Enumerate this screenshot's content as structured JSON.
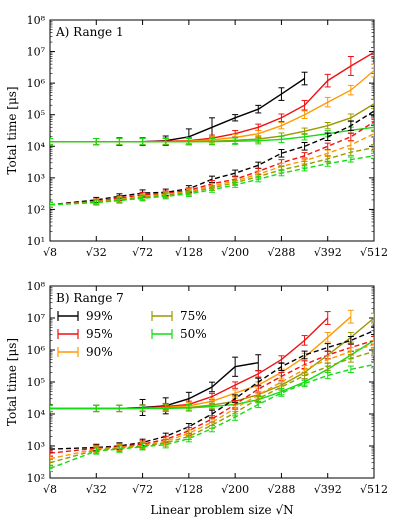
{
  "figure": {
    "xlabel": "Linear problem size √N",
    "x_tick_labels": [
      "√8",
      "√32",
      "√72",
      "√128",
      "√200",
      "√288",
      "√392",
      "√512"
    ]
  },
  "colors": {
    "99%": "#000000",
    "95%": "#ee1111",
    "90%": "#ff9900",
    "75%": "#999900",
    "50%": "#11dd11"
  },
  "chart_data": [
    {
      "type": "line",
      "title": "A) Range 1",
      "ylabel": "Total time [μs]",
      "xscale": "sqrt",
      "yscale": "log",
      "x_ticks": [
        8,
        32,
        72,
        128,
        200,
        288,
        392,
        512
      ],
      "xlim": [
        8,
        512
      ],
      "ylim": [
        10,
        100000000
      ],
      "y_tick_labels": [
        "10¹",
        "10²",
        "10³",
        "10⁴",
        "10⁵",
        "10⁶",
        "10⁷",
        "10⁸"
      ],
      "legend": false,
      "series": [
        {
          "color": "99%",
          "style": "solid",
          "x": [
            8,
            32,
            50,
            72,
            98,
            128,
            162,
            200,
            242,
            288,
            338
          ],
          "y": [
            14000,
            14000,
            14000,
            14000,
            15000,
            20000,
            40000,
            80000,
            150000,
            450000,
            1400000
          ],
          "err": [
            0.1,
            0.1,
            0.12,
            0.12,
            0.15,
            0.25,
            0.3,
            0.1,
            0.12,
            0.2,
            0.2
          ]
        },
        {
          "color": "95%",
          "style": "solid",
          "x": [
            8,
            32,
            50,
            72,
            98,
            128,
            162,
            200,
            242,
            288,
            338,
            392,
            450,
            512
          ],
          "y": [
            14000,
            14000,
            14000,
            14000,
            14500,
            15000,
            18000,
            25000,
            40000,
            80000,
            200000,
            1200000,
            3500000,
            9500000
          ],
          "err": [
            0.1,
            0.1,
            0.1,
            0.1,
            0.1,
            0.1,
            0.1,
            0.1,
            0.1,
            0.12,
            0.15,
            0.2,
            0.3,
            0.15
          ]
        },
        {
          "color": "90%",
          "style": "solid",
          "x": [
            8,
            32,
            50,
            72,
            98,
            128,
            162,
            200,
            242,
            288,
            338,
            392,
            450,
            512
          ],
          "y": [
            14000,
            14000,
            14000,
            14000,
            14000,
            14500,
            16000,
            19000,
            25000,
            45000,
            100000,
            250000,
            600000,
            2500000
          ],
          "err": [
            0.1,
            0.1,
            0.1,
            0.1,
            0.1,
            0.1,
            0.1,
            0.1,
            0.1,
            0.1,
            0.12,
            0.15,
            0.15,
            0.2
          ]
        },
        {
          "color": "75%",
          "style": "solid",
          "x": [
            8,
            32,
            50,
            72,
            98,
            128,
            162,
            200,
            242,
            288,
            338,
            392,
            450,
            512
          ],
          "y": [
            14000,
            14000,
            14000,
            14000,
            14000,
            14000,
            14500,
            15500,
            17000,
            21000,
            30000,
            45000,
            80000,
            220000
          ],
          "err": [
            0.1,
            0.1,
            0.1,
            0.1,
            0.1,
            0.1,
            0.1,
            0.1,
            0.1,
            0.1,
            0.1,
            0.1,
            0.12,
            0.15
          ]
        },
        {
          "color": "50%",
          "style": "solid",
          "x": [
            8,
            32,
            50,
            72,
            98,
            128,
            162,
            200,
            242,
            288,
            338,
            392,
            450,
            512
          ],
          "y": [
            14000,
            14000,
            14000,
            14000,
            14000,
            14000,
            14000,
            14500,
            15000,
            16500,
            20000,
            25000,
            32000,
            40000
          ],
          "err": [
            0.1,
            0.1,
            0.1,
            0.1,
            0.1,
            0.1,
            0.1,
            0.1,
            0.1,
            0.1,
            0.1,
            0.1,
            0.1,
            0.1
          ]
        },
        {
          "color": "99%",
          "style": "dashed",
          "x": [
            8,
            32,
            50,
            72,
            98,
            128,
            162,
            200,
            242,
            288,
            338,
            392,
            450,
            512
          ],
          "y": [
            140,
            200,
            260,
            330,
            350,
            450,
            900,
            1400,
            2500,
            6000,
            10000,
            20000,
            45000,
            130000
          ],
          "err": [
            0.08,
            0.08,
            0.08,
            0.1,
            0.1,
            0.1,
            0.1,
            0.1,
            0.1,
            0.12,
            0.12,
            0.12,
            0.15,
            0.15
          ]
        },
        {
          "color": "95%",
          "style": "dashed",
          "x": [
            8,
            32,
            50,
            72,
            98,
            128,
            162,
            200,
            242,
            288,
            338,
            392,
            450,
            512
          ],
          "y": [
            140,
            180,
            230,
            290,
            320,
            400,
            650,
            900,
            1600,
            3000,
            5000,
            10000,
            20000,
            60000
          ],
          "err": [
            0.08,
            0.08,
            0.08,
            0.08,
            0.08,
            0.08,
            0.1,
            0.1,
            0.1,
            0.1,
            0.1,
            0.1,
            0.12,
            0.12
          ]
        },
        {
          "color": "90%",
          "style": "dashed",
          "x": [
            8,
            32,
            50,
            72,
            98,
            128,
            162,
            200,
            242,
            288,
            338,
            392,
            450,
            512
          ],
          "y": [
            140,
            175,
            210,
            260,
            300,
            370,
            550,
            800,
            1300,
            2300,
            3500,
            6000,
            11000,
            25000
          ],
          "err": [
            0.08,
            0.08,
            0.08,
            0.08,
            0.08,
            0.08,
            0.08,
            0.1,
            0.1,
            0.1,
            0.1,
            0.1,
            0.12,
            0.12
          ]
        },
        {
          "color": "75%",
          "style": "dashed",
          "x": [
            8,
            32,
            50,
            72,
            98,
            128,
            162,
            200,
            242,
            288,
            338,
            392,
            450,
            512
          ],
          "y": [
            140,
            170,
            200,
            240,
            280,
            340,
            480,
            700,
            1100,
            1800,
            2600,
            4000,
            6500,
            9000
          ],
          "err": [
            0.08,
            0.08,
            0.08,
            0.08,
            0.08,
            0.08,
            0.08,
            0.08,
            0.08,
            0.1,
            0.1,
            0.1,
            0.1,
            0.1
          ]
        },
        {
          "color": "50%",
          "style": "dashed",
          "x": [
            8,
            32,
            50,
            72,
            98,
            128,
            162,
            200,
            242,
            288,
            338,
            392,
            450,
            512
          ],
          "y": [
            140,
            165,
            190,
            225,
            260,
            310,
            420,
            600,
            900,
            1400,
            2000,
            2800,
            3800,
            5000
          ],
          "err": [
            0.08,
            0.08,
            0.08,
            0.08,
            0.08,
            0.08,
            0.08,
            0.08,
            0.08,
            0.08,
            0.08,
            0.08,
            0.08,
            0.08
          ]
        }
      ]
    },
    {
      "type": "line",
      "title": "B) Range 7",
      "ylabel": "Total time [μs]",
      "xscale": "sqrt",
      "yscale": "log",
      "x_ticks": [
        8,
        32,
        72,
        128,
        200,
        288,
        392,
        512
      ],
      "xlim": [
        8,
        512
      ],
      "ylim": [
        100,
        100000000
      ],
      "y_tick_labels": [
        "10²",
        "10³",
        "10⁴",
        "10⁵",
        "10⁶",
        "10⁷",
        "10⁸"
      ],
      "legend": true,
      "legend_position": "top-left",
      "legend_entries": [
        "99%",
        "95%",
        "90%",
        "75%",
        "50%"
      ],
      "series": [
        {
          "name": "99%",
          "color": "99%",
          "style": "solid",
          "x": [
            8,
            32,
            50,
            72,
            98,
            128,
            162,
            200,
            242
          ],
          "y": [
            15000,
            15000,
            15000,
            16000,
            18000,
            30000,
            70000,
            300000,
            400000
          ],
          "err": [
            0.1,
            0.1,
            0.1,
            0.25,
            0.25,
            0.2,
            0.15,
            0.3,
            0.25
          ]
        },
        {
          "name": "95%",
          "color": "95%",
          "style": "solid",
          "x": [
            8,
            32,
            50,
            72,
            98,
            128,
            162,
            200,
            242,
            288,
            338,
            392
          ],
          "y": [
            15000,
            15000,
            15000,
            15500,
            17000,
            20000,
            35000,
            80000,
            180000,
            500000,
            2000000,
            10000000
          ],
          "err": [
            0.1,
            0.1,
            0.1,
            0.1,
            0.1,
            0.1,
            0.1,
            0.1,
            0.1,
            0.12,
            0.15,
            0.2
          ]
        },
        {
          "name": "90%",
          "color": "90%",
          "style": "solid",
          "x": [
            8,
            32,
            50,
            72,
            98,
            128,
            162,
            200,
            242,
            288,
            338,
            392,
            450
          ],
          "y": [
            15000,
            15000,
            15000,
            15000,
            16000,
            18000,
            25000,
            45000,
            80000,
            200000,
            600000,
            2500000,
            11000000
          ],
          "err": [
            0.1,
            0.1,
            0.1,
            0.1,
            0.1,
            0.1,
            0.1,
            0.1,
            0.1,
            0.1,
            0.12,
            0.15,
            0.2
          ]
        },
        {
          "name": "75%",
          "color": "75%",
          "style": "solid",
          "x": [
            8,
            32,
            50,
            72,
            98,
            128,
            162,
            200,
            242,
            288,
            338,
            392,
            450,
            512
          ],
          "y": [
            15000,
            15000,
            15000,
            15000,
            15500,
            16000,
            19000,
            25000,
            40000,
            80000,
            200000,
            700000,
            2500000,
            10000000
          ],
          "err": [
            0.1,
            0.1,
            0.1,
            0.1,
            0.1,
            0.1,
            0.1,
            0.1,
            0.1,
            0.1,
            0.1,
            0.12,
            0.15,
            0.15
          ]
        },
        {
          "name": "50%",
          "color": "50%",
          "style": "solid",
          "x": [
            8,
            32,
            50,
            72,
            98,
            128,
            162,
            200,
            242,
            288,
            338,
            392,
            450,
            512
          ],
          "y": [
            15000,
            15000,
            15000,
            15000,
            15000,
            15500,
            17000,
            20000,
            28000,
            50000,
            100000,
            250000,
            700000,
            2000000
          ],
          "err": [
            0.1,
            0.1,
            0.1,
            0.1,
            0.1,
            0.1,
            0.1,
            0.1,
            0.1,
            0.1,
            0.1,
            0.1,
            0.12,
            0.12
          ]
        },
        {
          "color": "99%",
          "style": "dashed",
          "x": [
            8,
            32,
            50,
            72,
            98,
            128,
            162,
            200,
            242,
            288,
            338,
            392,
            450,
            512
          ],
          "y": [
            800,
            900,
            1000,
            1300,
            2000,
            4000,
            10000,
            30000,
            100000,
            300000,
            700000,
            1200000,
            2000000,
            4000000
          ],
          "err": [
            0.1,
            0.1,
            0.1,
            0.1,
            0.1,
            0.1,
            0.12,
            0.12,
            0.12,
            0.12,
            0.12,
            0.12,
            0.12,
            0.12
          ]
        },
        {
          "color": "95%",
          "style": "dashed",
          "x": [
            8,
            32,
            50,
            72,
            98,
            128,
            162,
            200,
            242,
            288,
            338,
            392,
            450,
            512
          ],
          "y": [
            600,
            850,
            950,
            1150,
            1600,
            3000,
            7000,
            20000,
            60000,
            150000,
            350000,
            700000,
            1200000,
            2000000
          ],
          "err": [
            0.1,
            0.1,
            0.1,
            0.1,
            0.1,
            0.1,
            0.1,
            0.12,
            0.12,
            0.12,
            0.12,
            0.12,
            0.12,
            0.12
          ]
        },
        {
          "color": "90%",
          "style": "dashed",
          "x": [
            8,
            32,
            50,
            72,
            98,
            128,
            162,
            200,
            242,
            288,
            338,
            392,
            450,
            512
          ],
          "y": [
            400,
            800,
            900,
            1050,
            1400,
            2500,
            5500,
            15000,
            40000,
            100000,
            250000,
            500000,
            900000,
            1500000
          ],
          "err": [
            0.1,
            0.1,
            0.1,
            0.1,
            0.1,
            0.1,
            0.1,
            0.1,
            0.1,
            0.12,
            0.12,
            0.12,
            0.12,
            0.12
          ]
        },
        {
          "color": "75%",
          "style": "dashed",
          "x": [
            8,
            32,
            50,
            72,
            98,
            128,
            162,
            200,
            242,
            288,
            338,
            392,
            450,
            512
          ],
          "y": [
            300,
            750,
            850,
            1000,
            1250,
            2000,
            4500,
            11000,
            30000,
            70000,
            160000,
            300000,
            550000,
            900000
          ],
          "err": [
            0.1,
            0.1,
            0.1,
            0.1,
            0.1,
            0.1,
            0.1,
            0.1,
            0.1,
            0.1,
            0.1,
            0.12,
            0.12,
            0.12
          ]
        },
        {
          "color": "50%",
          "style": "dashed",
          "x": [
            8,
            32,
            50,
            72,
            98,
            128,
            162,
            200,
            242,
            288,
            338,
            392,
            450,
            512
          ],
          "y": [
            200,
            700,
            800,
            950,
            1100,
            1700,
            3500,
            8000,
            20000,
            45000,
            90000,
            160000,
            250000,
            350000
          ],
          "err": [
            0.1,
            0.1,
            0.1,
            0.1,
            0.1,
            0.1,
            0.1,
            0.1,
            0.1,
            0.1,
            0.1,
            0.1,
            0.1,
            0.1
          ]
        }
      ]
    }
  ]
}
